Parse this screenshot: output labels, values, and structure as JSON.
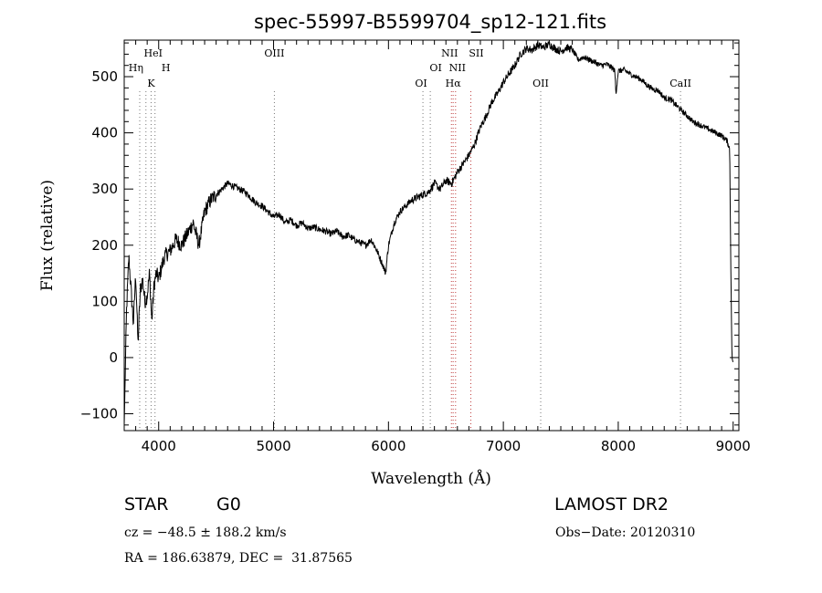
{
  "chart_data": {
    "type": "line",
    "title": "spec-55997-B5599704_sp12-121.fits",
    "xlabel": "Wavelength (Å)",
    "ylabel": "Flux (relative)",
    "xlim": [
      3700,
      9050
    ],
    "ylim": [
      -130,
      565
    ],
    "xticks": [
      4000,
      5000,
      6000,
      7000,
      8000,
      9000
    ],
    "yticks": [
      -100,
      0,
      100,
      200,
      300,
      400,
      500
    ],
    "grid": false,
    "series": [
      {
        "x": [
          3700,
          3720,
          3740,
          3760,
          3780,
          3800,
          3820,
          3840,
          3860,
          3880,
          3900,
          3920,
          3940,
          3960,
          3980,
          4000,
          4050,
          4100,
          4150,
          4200,
          4250,
          4300,
          4350,
          4400,
          4450,
          4500,
          4550,
          4600,
          4650,
          4700,
          4750,
          4800,
          4850,
          4900,
          4950,
          5000,
          5050,
          5100,
          5150,
          5200,
          5250,
          5300,
          5350,
          5400,
          5450,
          5500,
          5550,
          5600,
          5650,
          5700,
          5750,
          5800,
          5850,
          5900,
          5950,
          5975,
          5990,
          6000,
          6050,
          6100,
          6150,
          6200,
          6250,
          6300,
          6350,
          6400,
          6450,
          6500,
          6550,
          6600,
          6650,
          6700,
          6750,
          6800,
          6850,
          6900,
          6950,
          7000,
          7050,
          7100,
          7150,
          7200,
          7250,
          7300,
          7350,
          7400,
          7450,
          7500,
          7550,
          7600,
          7650,
          7700,
          7750,
          7800,
          7850,
          7900,
          7950,
          7970,
          7980,
          8000,
          8050,
          8100,
          8150,
          8200,
          8250,
          8300,
          8350,
          8400,
          8450,
          8500,
          8550,
          8600,
          8650,
          8700,
          8750,
          8800,
          8850,
          8900,
          8950,
          8970,
          8980,
          8990,
          9000
        ],
        "y": [
          -120,
          80,
          180,
          120,
          60,
          150,
          25,
          120,
          140,
          100,
          110,
          150,
          65,
          130,
          150,
          140,
          180,
          190,
          210,
          200,
          220,
          240,
          200,
          260,
          280,
          290,
          300,
          310,
          305,
          300,
          295,
          285,
          275,
          270,
          260,
          250,
          255,
          240,
          245,
          235,
          240,
          230,
          232,
          228,
          225,
          220,
          225,
          215,
          218,
          210,
          205,
          200,
          210,
          190,
          165,
          150,
          180,
          200,
          240,
          260,
          270,
          280,
          285,
          290,
          295,
          310,
          300,
          315,
          310,
          330,
          345,
          360,
          380,
          410,
          430,
          455,
          470,
          490,
          505,
          520,
          540,
          550,
          548,
          556,
          552,
          558,
          550,
          545,
          552,
          548,
          530,
          535,
          530,
          525,
          520,
          522,
          515,
          510,
          470,
          510,
          512,
          505,
          500,
          495,
          485,
          478,
          475,
          462,
          460,
          450,
          440,
          430,
          420,
          415,
          410,
          405,
          400,
          395,
          385,
          370,
          160,
          0,
          -10
        ]
      }
    ],
    "emission_lines": [
      {
        "label": "HeI",
        "x": 3889
      },
      {
        "label": "Hη",
        "x": 3835
      },
      {
        "label": "H",
        "x": 3968
      },
      {
        "label": "K",
        "x": 3934
      },
      {
        "label": "OIII",
        "x": 5007
      },
      {
        "label": "OI",
        "x": 6364
      },
      {
        "label": "OI",
        "x": 6300
      },
      {
        "label": "NII",
        "x": 6548
      },
      {
        "label": "NII",
        "x": 6584
      },
      {
        "label": "Hα",
        "x": 6563
      },
      {
        "label": "SII",
        "x": 6717
      },
      {
        "label": "OII",
        "x": 7325
      },
      {
        "label": "CaII",
        "x": 8542
      }
    ]
  },
  "info": {
    "object_class": "STAR",
    "subclass": "G0",
    "survey": "LAMOST DR2",
    "cz": "cz = −48.5 ± 188.2 km/s",
    "obs_date": "Obs−Date: 20120310",
    "coords": "RA = 186.63879, DEC =  31.87565"
  }
}
